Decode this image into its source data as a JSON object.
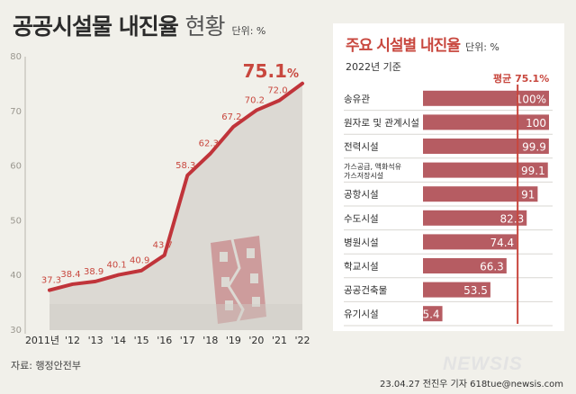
{
  "header": {
    "title_main": "공공시설물 내진율",
    "title_sub": "현황",
    "unit": "단위: %"
  },
  "panel": {
    "title": "주요 시설별 내진율",
    "unit": "단위: %",
    "date_label": "2022년 기준",
    "average_label": "평균 75.1%"
  },
  "footer": {
    "source": "자료: 행정안전부",
    "credit": "23.04.27 전진우 기자 618tue@newsis.com",
    "logo_text": "NEWSIS"
  },
  "colors": {
    "line": "#c0343a",
    "area": "#dcd9d3",
    "bar": "#b65c62",
    "accent": "#c8473e",
    "background": "#f1f0ea"
  },
  "chart_data": [
    {
      "type": "line",
      "title": "공공시설물 내진율 현황",
      "ylabel": "",
      "xlabel": "",
      "x": [
        "2011년",
        "'12",
        "'13",
        "'14",
        "'15",
        "'16",
        "'17",
        "'18",
        "'19",
        "'20",
        "'21",
        "'22"
      ],
      "series": [
        {
          "values": [
            37.3,
            38.4,
            38.9,
            40.1,
            40.9,
            43.7,
            58.3,
            62.3,
            67.2,
            70.2,
            72.0,
            75.1
          ],
          "labels": [
            "37.3",
            "38.4",
            "38.9",
            "40.1",
            "40.9",
            "43.7",
            "58.3",
            "62.3",
            "67.2",
            "70.2",
            "72.0",
            "75.1"
          ]
        }
      ],
      "last_value_unit": "%",
      "yticks": [
        30,
        40,
        50,
        60,
        70,
        80
      ],
      "ylim": [
        30,
        80
      ],
      "grid": false
    },
    {
      "type": "bar",
      "orientation": "horizontal",
      "title": "주요 시설별 내진율",
      "categories": [
        [
          "송유관"
        ],
        [
          "원자로 및 관계시설"
        ],
        [
          "전력시설"
        ],
        [
          "가스공급, 액화석유",
          "가스저장시설"
        ],
        [
          "공항시설"
        ],
        [
          "수도시설"
        ],
        [
          "병원시설"
        ],
        [
          "학교시설"
        ],
        [
          "공공건축물"
        ],
        [
          "유기시설"
        ]
      ],
      "values": [
        100,
        100,
        99.9,
        99.1,
        91,
        82.3,
        74.4,
        66.3,
        53.5,
        15.4
      ],
      "value_labels": [
        "100%",
        "100",
        "99.9",
        "99.1",
        "91",
        "82.3",
        "74.4",
        "66.3",
        "53.5",
        "15.4"
      ],
      "xlim": [
        0,
        100
      ],
      "average": 75.1
    }
  ]
}
